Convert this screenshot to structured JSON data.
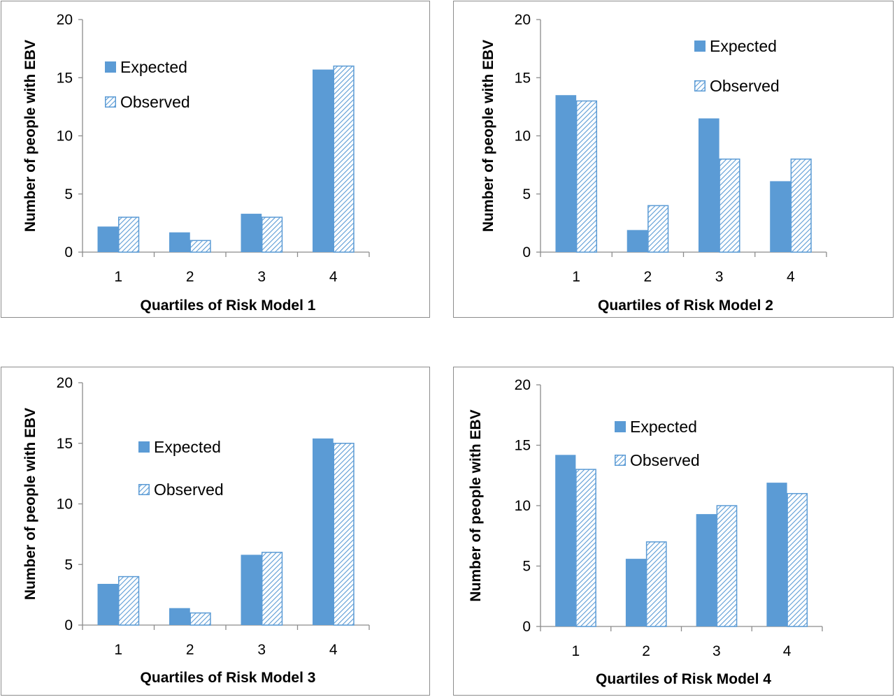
{
  "chart_data": [
    {
      "type": "bar",
      "xlabel": "Quartiles of Risk Model 1",
      "ylabel": "Number of people with EBV",
      "categories": [
        "1",
        "2",
        "3",
        "4"
      ],
      "series": [
        {
          "name": "Expected",
          "values": [
            2.2,
            1.7,
            3.3,
            15.7
          ]
        },
        {
          "name": "Observed",
          "values": [
            3,
            1,
            3,
            16
          ]
        }
      ],
      "ylim": [
        0,
        20
      ],
      "yticks": [
        0,
        5,
        10,
        15,
        20
      ],
      "grid": false,
      "legend": "top-left"
    },
    {
      "type": "bar",
      "xlabel": "Quartiles of Risk Model 2",
      "ylabel": "Number of people with EBV",
      "categories": [
        "1",
        "2",
        "3",
        "4"
      ],
      "series": [
        {
          "name": "Expected",
          "values": [
            13.5,
            1.9,
            11.5,
            6.1
          ]
        },
        {
          "name": "Observed",
          "values": [
            13,
            4,
            8,
            8
          ]
        }
      ],
      "ylim": [
        0,
        20
      ],
      "yticks": [
        0,
        5,
        10,
        15,
        20
      ],
      "grid": false,
      "legend": "top-right"
    },
    {
      "type": "bar",
      "xlabel": "Quartiles of Risk Model 3",
      "ylabel": "Number of people with EBV",
      "categories": [
        "1",
        "2",
        "3",
        "4"
      ],
      "series": [
        {
          "name": "Expected",
          "values": [
            3.4,
            1.4,
            5.8,
            15.4
          ]
        },
        {
          "name": "Observed",
          "values": [
            4,
            1,
            6,
            15
          ]
        }
      ],
      "ylim": [
        0,
        20
      ],
      "yticks": [
        0,
        5,
        10,
        15,
        20
      ],
      "grid": false,
      "legend": "top-center"
    },
    {
      "type": "bar",
      "xlabel": "Quartiles of Risk Model 4",
      "ylabel": "Number of people with EBV",
      "categories": [
        "1",
        "2",
        "3",
        "4"
      ],
      "series": [
        {
          "name": "Expected",
          "values": [
            14.2,
            5.6,
            9.3,
            11.9
          ]
        },
        {
          "name": "Observed",
          "values": [
            13,
            7,
            10,
            11
          ]
        }
      ],
      "ylim": [
        0,
        20
      ],
      "yticks": [
        0,
        5,
        10,
        15,
        20
      ],
      "grid": false,
      "legend": "top-center"
    }
  ],
  "colors": {
    "expected_fill": "#5b9bd5",
    "observed_stroke": "#5b9bd5",
    "observed_hatch": "#5b9bd5",
    "axis": "#8c8c8c",
    "frame": "#8c8c8c"
  }
}
